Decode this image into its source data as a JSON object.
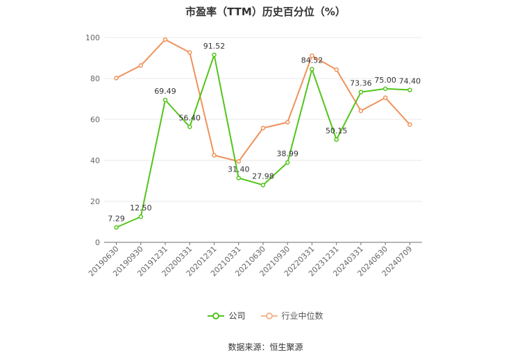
{
  "chart_data": {
    "type": "line",
    "title": "市盈率（TTM）历史百分位（%）",
    "categories": [
      "20190630",
      "20190930",
      "20191231",
      "20200331",
      "20201231",
      "20210331",
      "20210630",
      "20210930",
      "20220331",
      "20231231",
      "20240331",
      "20240630",
      "20240709"
    ],
    "series": [
      {
        "name": "公司",
        "color": "#52c41a",
        "values": [
          7.29,
          12.5,
          69.49,
          56.4,
          91.52,
          31.4,
          27.98,
          38.99,
          84.52,
          50.15,
          73.36,
          75.0,
          74.4
        ],
        "labels": [
          "7.29",
          "12.50",
          "69.49",
          "56.40",
          "91.52",
          "31.40",
          "27.98",
          "38.99",
          "84.52",
          "50.15",
          "73.36",
          "75.00",
          "74.40"
        ]
      },
      {
        "name": "行业中位数",
        "color": "#f0915a",
        "values": [
          80.2,
          86.3,
          99.0,
          92.7,
          42.5,
          39.5,
          55.8,
          58.6,
          91.1,
          84.3,
          64.2,
          70.6,
          57.5
        ]
      }
    ],
    "yticks": [
      "0",
      "20",
      "40",
      "60",
      "80",
      "100"
    ],
    "ylim": [
      0,
      100
    ],
    "grid": true,
    "legend_position": "bottom"
  },
  "source_text": "数据来源：恒生聚源"
}
